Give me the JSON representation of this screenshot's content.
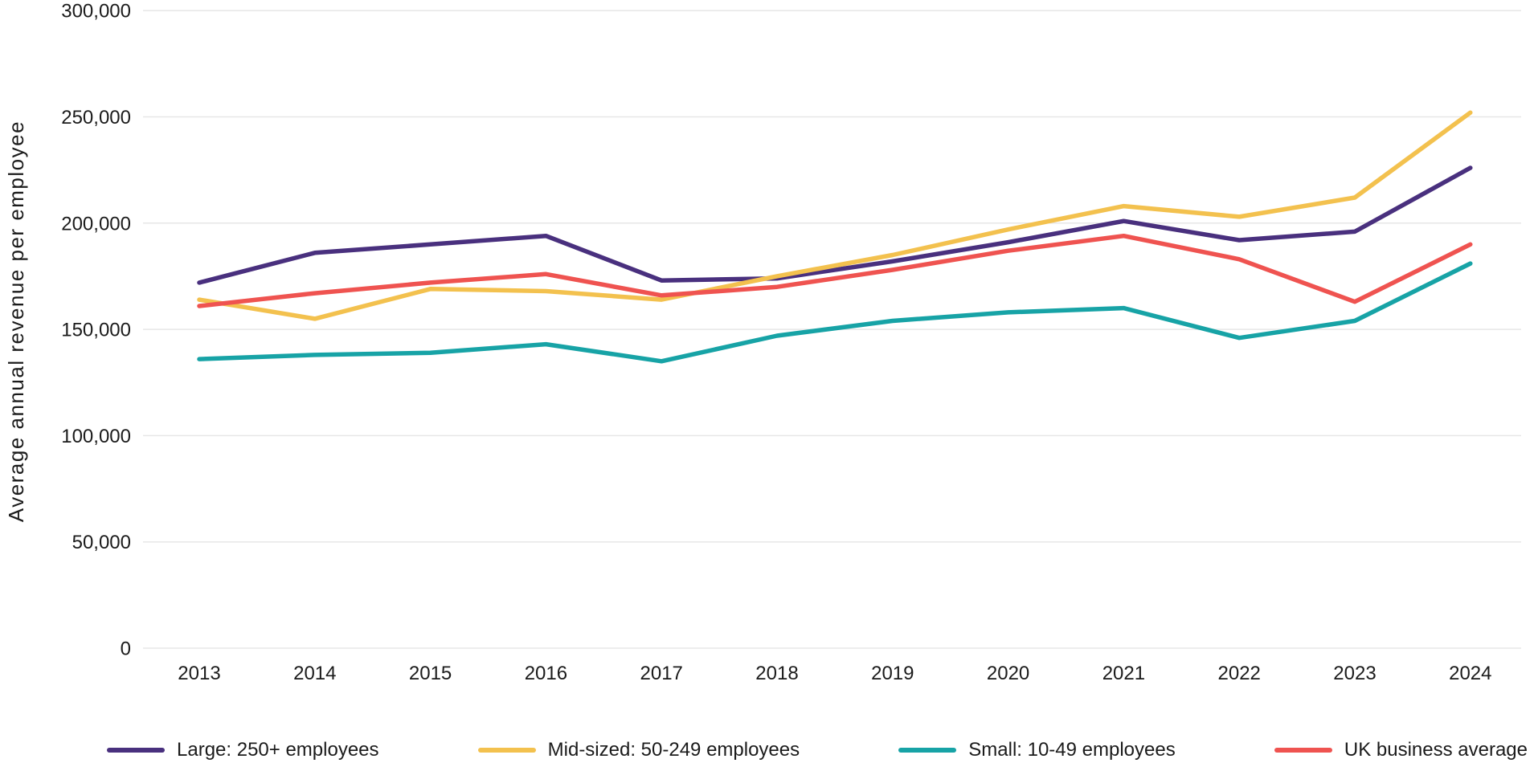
{
  "chart_data": {
    "type": "line",
    "title": "",
    "xlabel": "",
    "ylabel": "Average annual revenue per employee",
    "x": [
      2013,
      2014,
      2015,
      2016,
      2017,
      2018,
      2019,
      2020,
      2021,
      2022,
      2023,
      2024
    ],
    "ylim": [
      0,
      300000
    ],
    "ytick_interval": 50000,
    "yticks": [
      "0",
      "50,000",
      "100,000",
      "150,000",
      "200,000",
      "250,000",
      "300,000"
    ],
    "grid": "horizontal",
    "legend_position": "bottom",
    "series": [
      {
        "name": "Large: 250+ employees",
        "color": "#49307E",
        "values": [
          172000,
          186000,
          190000,
          194000,
          173000,
          174000,
          182000,
          191000,
          201000,
          192000,
          196000,
          226000
        ]
      },
      {
        "name": "Mid-sized: 50-249 employees",
        "color": "#F3C14E",
        "values": [
          164000,
          155000,
          169000,
          168000,
          164000,
          175000,
          185000,
          197000,
          208000,
          203000,
          212000,
          252000
        ]
      },
      {
        "name": "Small: 10-49 employees",
        "color": "#17A3A6",
        "values": [
          136000,
          138000,
          139000,
          143000,
          135000,
          147000,
          154000,
          158000,
          160000,
          146000,
          154000,
          181000
        ]
      },
      {
        "name": "UK business average",
        "color": "#EF5350",
        "values": [
          161000,
          167000,
          172000,
          176000,
          166000,
          170000,
          178000,
          187000,
          194000,
          183000,
          163000,
          190000
        ]
      }
    ]
  }
}
